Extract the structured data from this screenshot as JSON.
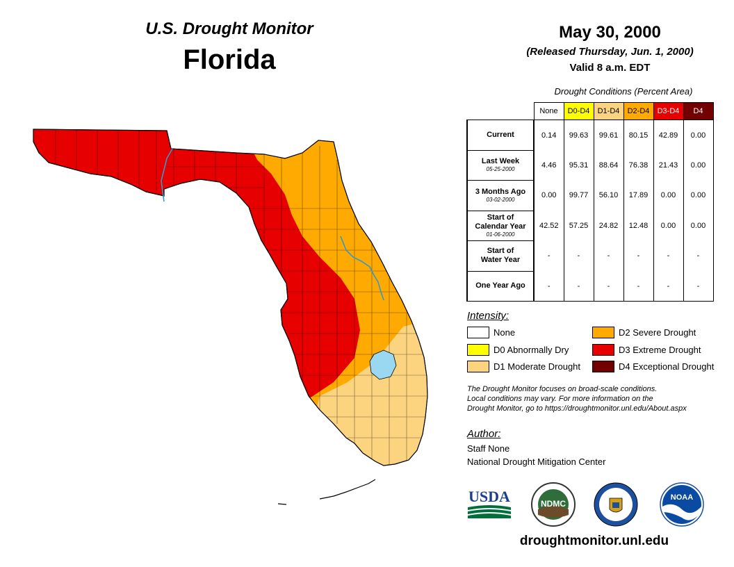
{
  "header": {
    "monitor_title": "U.S. Drought Monitor",
    "state": "Florida",
    "date": "May 30, 2000",
    "released": "(Released Thursday, Jun. 1, 2000)",
    "valid": "Valid 8 a.m. EDT"
  },
  "conditions": {
    "title": "Drought Conditions (Percent Area)",
    "columns": [
      {
        "label": "None",
        "color": "#ffffff",
        "text_color": "#000000"
      },
      {
        "label": "D0-D4",
        "color": "#ffff00",
        "text_color": "#000000"
      },
      {
        "label": "D1-D4",
        "color": "#fcd37f",
        "text_color": "#000000"
      },
      {
        "label": "D2-D4",
        "color": "#ffaa00",
        "text_color": "#000000"
      },
      {
        "label": "D3-D4",
        "color": "#e60000",
        "text_color": "#ffffff"
      },
      {
        "label": "D4",
        "color": "#730000",
        "text_color": "#ffffff"
      }
    ],
    "rows": [
      {
        "label": "Current",
        "label2": "",
        "date": "",
        "values": [
          "0.14",
          "99.63",
          "99.61",
          "80.15",
          "42.89",
          "0.00"
        ]
      },
      {
        "label": "Last Week",
        "label2": "",
        "date": "05-25-2000",
        "values": [
          "4.46",
          "95.31",
          "88.64",
          "76.38",
          "21.43",
          "0.00"
        ]
      },
      {
        "label": "3 Months Ago",
        "label2": "",
        "date": "03-02-2000",
        "values": [
          "0.00",
          "99.77",
          "56.10",
          "17.89",
          "0.00",
          "0.00"
        ]
      },
      {
        "label": "Start of",
        "label2": "Calendar Year",
        "date": "01-06-2000",
        "values": [
          "42.52",
          "57.25",
          "24.82",
          "12.48",
          "0.00",
          "0.00"
        ]
      },
      {
        "label": "Start of",
        "label2": "Water Year",
        "date": "",
        "values": [
          "-",
          "-",
          "-",
          "-",
          "-",
          "-"
        ]
      },
      {
        "label": "One Year Ago",
        "label2": "",
        "date": "",
        "values": [
          "-",
          "-",
          "-",
          "-",
          "-",
          "-"
        ]
      }
    ]
  },
  "intensity": {
    "title": "Intensity:",
    "items": [
      {
        "label": "None",
        "color": "#ffffff"
      },
      {
        "label": "D0 Abnormally Dry",
        "color": "#ffff00"
      },
      {
        "label": "D1 Moderate Drought",
        "color": "#fcd37f"
      },
      {
        "label": "D2 Severe Drought",
        "color": "#ffaa00"
      },
      {
        "label": "D3 Extreme Drought",
        "color": "#e60000"
      },
      {
        "label": "D4 Exceptional Drought",
        "color": "#730000"
      }
    ]
  },
  "note": {
    "line1": "The Drought Monitor focuses on broad-scale conditions.",
    "line2": "Local conditions may vary. For more information on the",
    "line3": "Drought Monitor, go to https://droughtmonitor.unl.edu/About.aspx"
  },
  "author": {
    "title": "Author:",
    "name": "Staff None",
    "org": "National Drought Mitigation Center"
  },
  "logos": {
    "usda": "USDA",
    "ndmc": "NDMC",
    "noaa": "NOAA"
  },
  "url": "droughtmonitor.unl.edu",
  "map_colors": {
    "d1": "#fcd37f",
    "d2": "#ffaa00",
    "d3": "#e60000",
    "water": "#99d8f0",
    "river": "#3399cc",
    "border": "#000000"
  }
}
